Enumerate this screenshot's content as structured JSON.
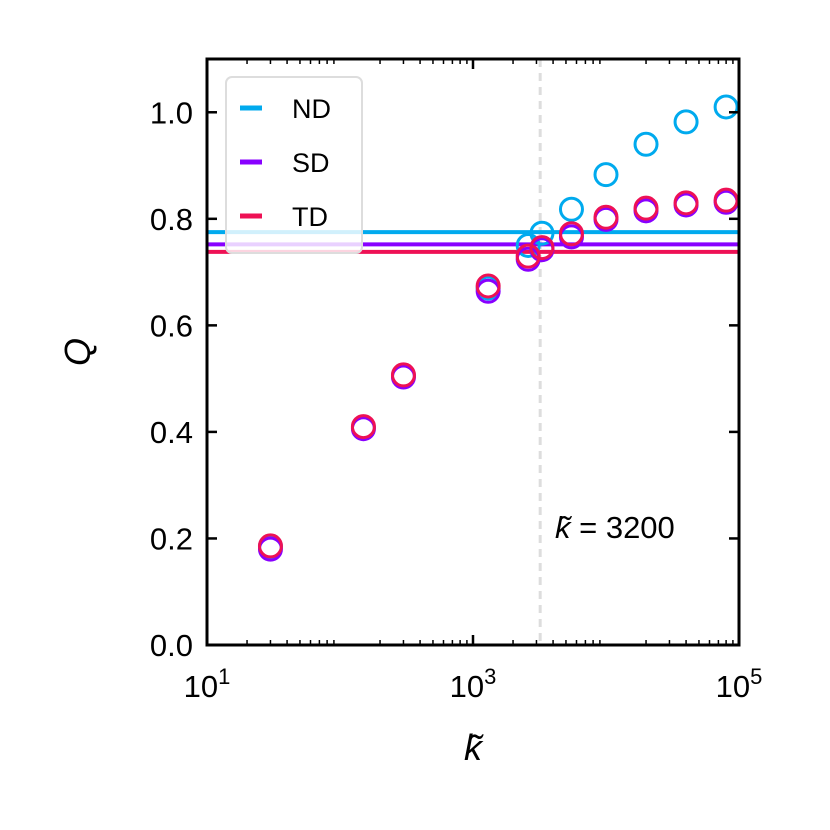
{
  "chart_data": {
    "type": "scatter",
    "xscale": "log",
    "xlim": [
      10,
      100000
    ],
    "ylim": [
      0,
      1.1
    ],
    "xlabel": "k̃",
    "ylabel": "Q",
    "xticks": [
      {
        "value": 10,
        "base": "10",
        "exp": "1"
      },
      {
        "value": 1000,
        "base": "10",
        "exp": "3"
      },
      {
        "value": 100000,
        "base": "10",
        "exp": "5"
      }
    ],
    "yticks": [
      "0.0",
      "0.2",
      "0.4",
      "0.6",
      "0.8",
      "1.0"
    ],
    "grid": false,
    "legend_position": "top-left",
    "vline": {
      "x": 3200,
      "color": "#dddddd"
    },
    "annotation": {
      "symbol": "k̃",
      "text": " = 3200"
    },
    "series": [
      {
        "name": "ND",
        "color": "#00aaee",
        "hline": 0.775,
        "x": [
          30,
          150,
          300,
          1300,
          2600,
          3300,
          5500,
          10000,
          20000,
          40000,
          80000
        ],
        "y": [
          0.185,
          0.408,
          0.505,
          0.67,
          0.75,
          0.773,
          0.818,
          0.883,
          0.94,
          0.982,
          1.01
        ]
      },
      {
        "name": "SD",
        "color": "#8800ff",
        "hline": 0.752,
        "x": [
          30,
          150,
          300,
          1300,
          2600,
          3300,
          5500,
          10000,
          20000,
          40000,
          80000
        ],
        "y": [
          0.18,
          0.406,
          0.503,
          0.664,
          0.724,
          0.742,
          0.766,
          0.799,
          0.815,
          0.826,
          0.831
        ]
      },
      {
        "name": "TD",
        "color": "#ee1155",
        "hline": 0.738,
        "x": [
          30,
          150,
          300,
          1300,
          2600,
          3300,
          5500,
          10000,
          20000,
          40000,
          80000
        ],
        "y": [
          0.186,
          0.41,
          0.507,
          0.674,
          0.73,
          0.746,
          0.772,
          0.803,
          0.82,
          0.83,
          0.835
        ]
      }
    ]
  }
}
